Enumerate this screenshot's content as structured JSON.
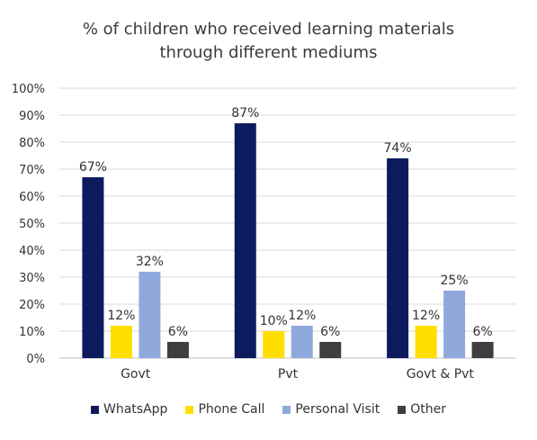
{
  "chart_data": {
    "type": "bar",
    "title": "% of children who received learning materials through different mediums",
    "title_lines": [
      "% of children who received learning materials",
      "through different mediums"
    ],
    "categories": [
      "Govt",
      "Pvt",
      "Govt & Pvt"
    ],
    "series": [
      {
        "name": "WhatsApp",
        "color": "#0d1b5e",
        "values": [
          67,
          87,
          74
        ]
      },
      {
        "name": "Phone Call",
        "color": "#ffde00",
        "values": [
          12,
          10,
          12
        ]
      },
      {
        "name": "Personal Visit",
        "color": "#8fa9dc",
        "values": [
          32,
          12,
          25
        ]
      },
      {
        "name": "Other",
        "color": "#3f3f3f",
        "values": [
          6,
          6,
          6
        ]
      }
    ],
    "ylim": [
      0,
      100
    ],
    "yticks": [
      "0%",
      "10%",
      "20%",
      "30%",
      "40%",
      "50%",
      "60%",
      "70%",
      "80%",
      "90%",
      "100%"
    ],
    "value_suffix": "%",
    "xlabel": "",
    "ylabel": "",
    "grid": true,
    "legend_position": "bottom"
  }
}
